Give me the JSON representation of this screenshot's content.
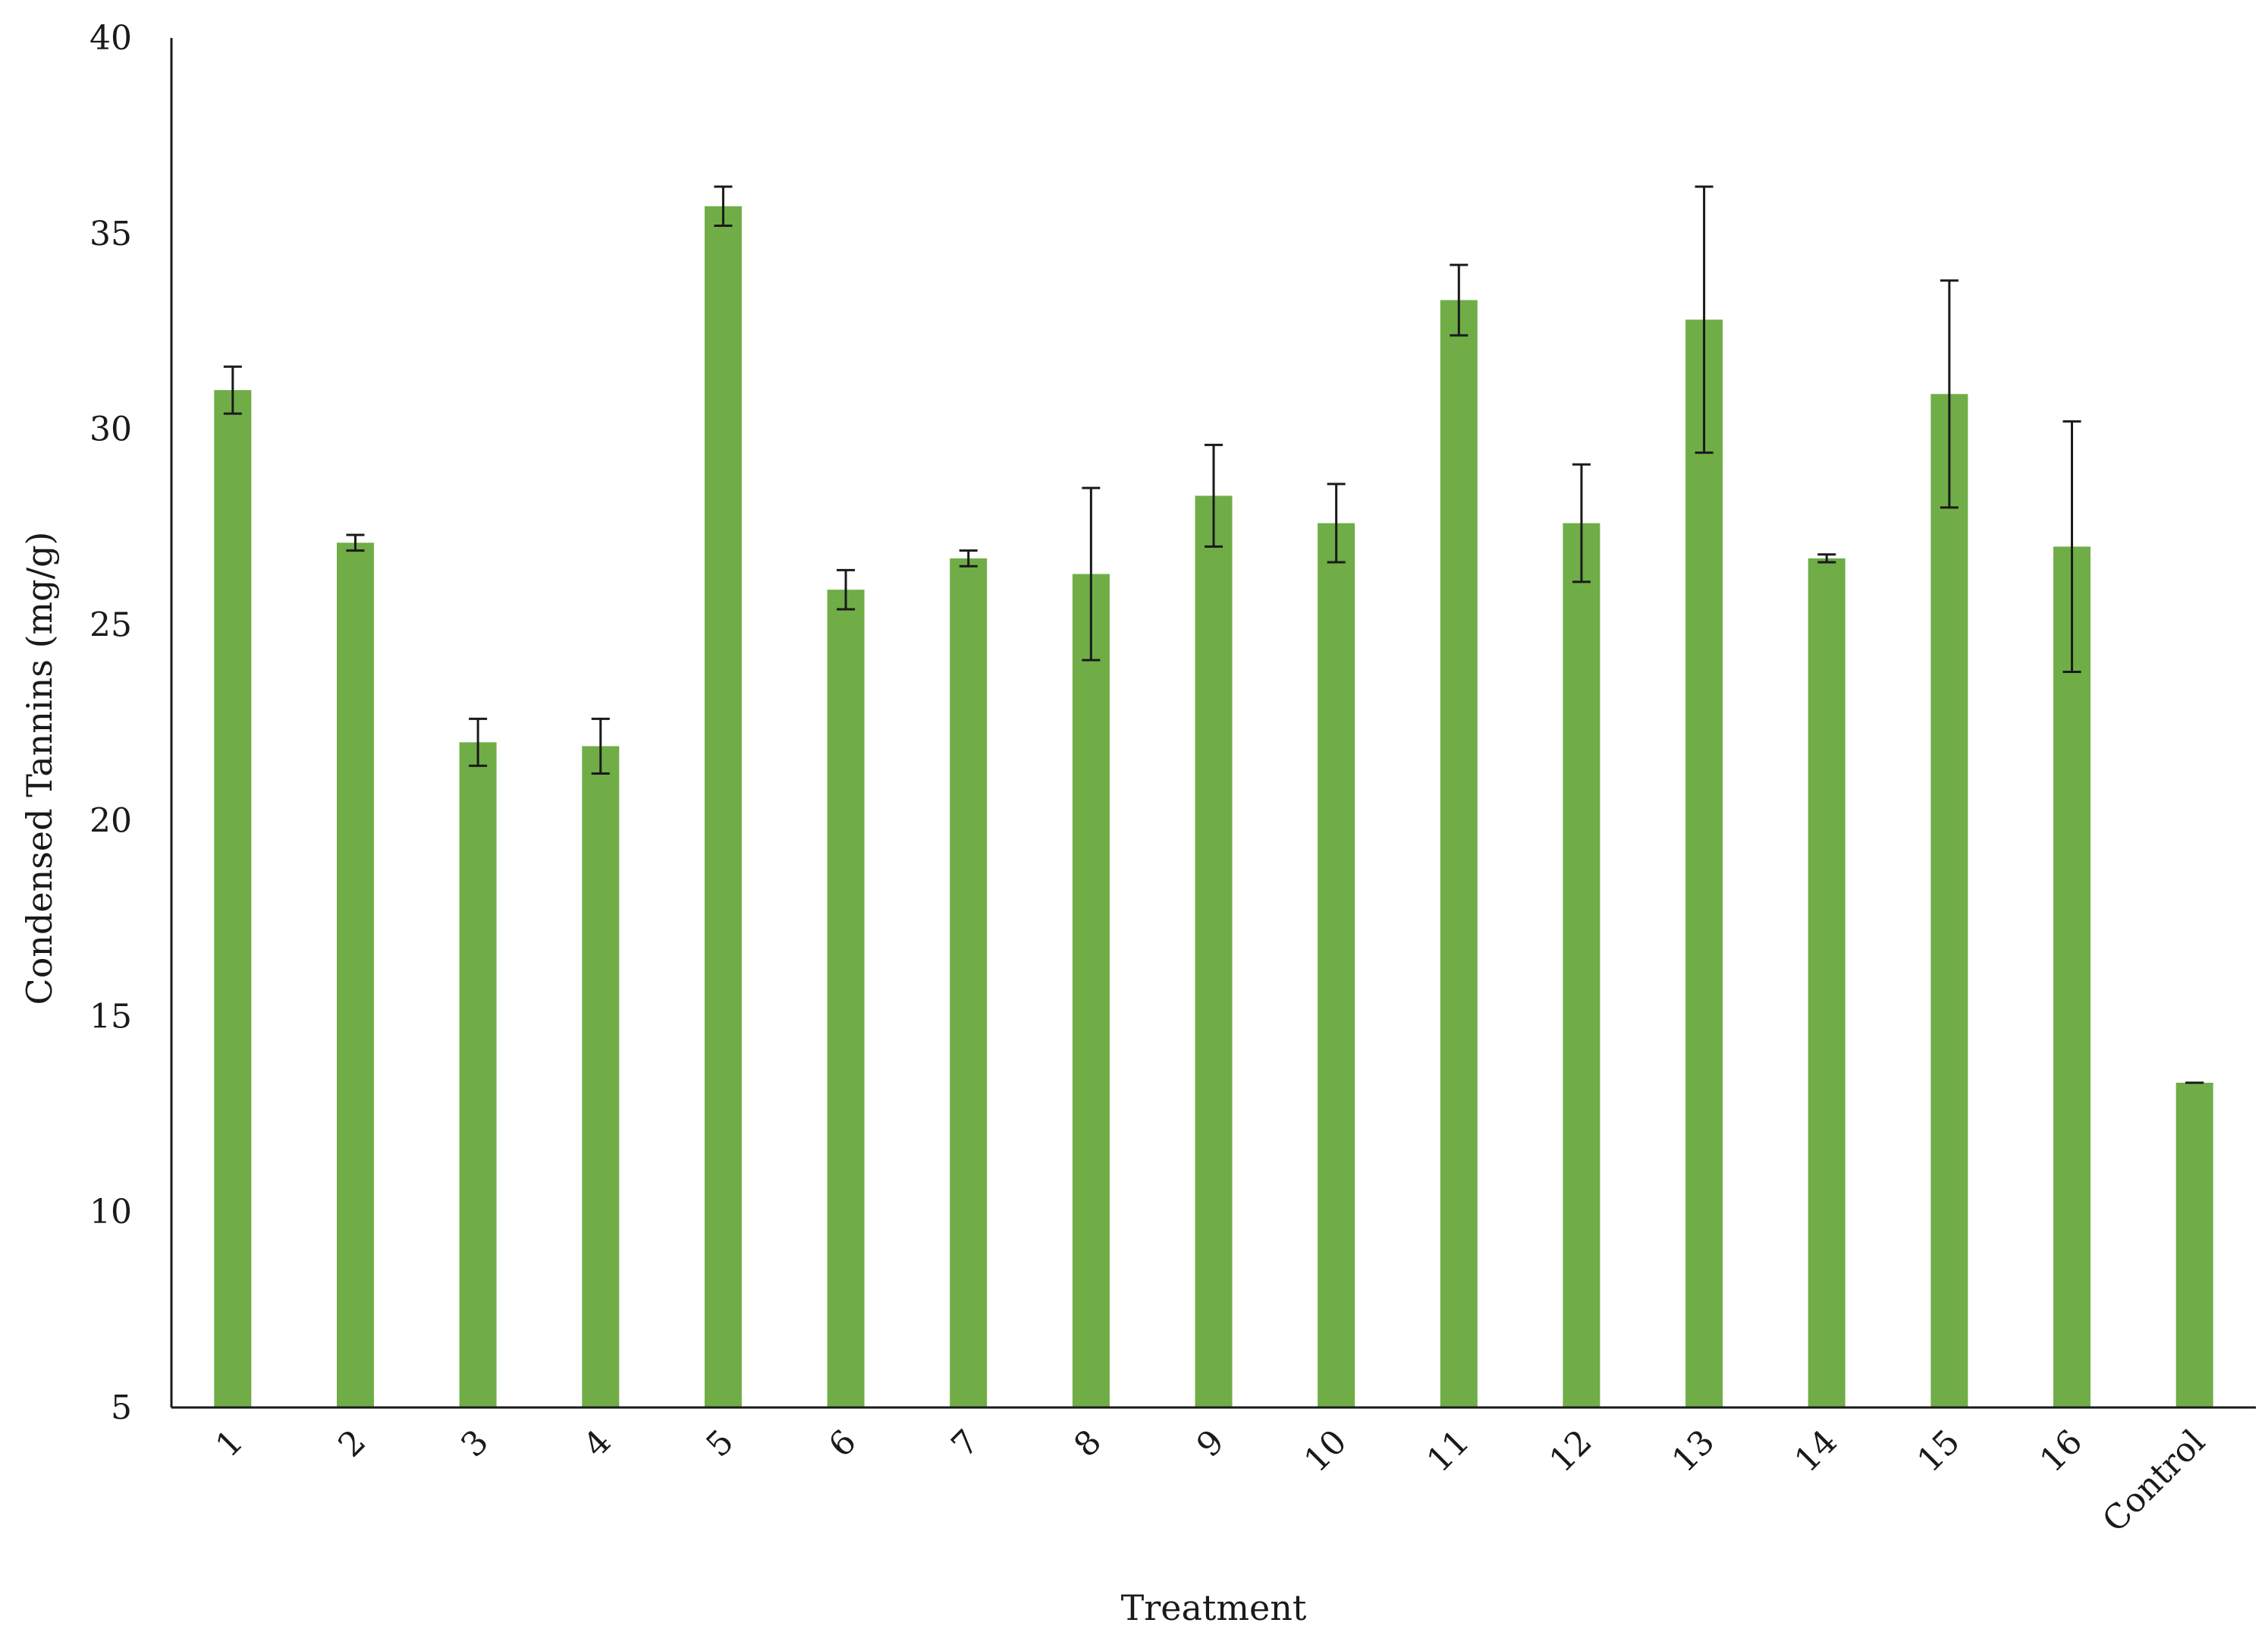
{
  "chart_data": {
    "type": "bar",
    "title": "",
    "xlabel": "Treatment",
    "ylabel": "Condensed Tannins (mg/g)",
    "categories": [
      "1",
      "2",
      "3",
      "4",
      "5",
      "6",
      "7",
      "8",
      "9",
      "10",
      "11",
      "12",
      "13",
      "14",
      "15",
      "16",
      "Control"
    ],
    "values": [
      31.0,
      27.1,
      22.0,
      21.9,
      35.7,
      25.9,
      26.7,
      26.3,
      28.3,
      27.6,
      33.3,
      27.6,
      32.8,
      26.7,
      30.9,
      27.0,
      13.3
    ],
    "errors": [
      0.6,
      0.2,
      0.6,
      0.7,
      0.5,
      0.5,
      0.2,
      2.2,
      1.3,
      1.0,
      0.9,
      1.5,
      3.4,
      0.1,
      2.9,
      3.2,
      0.0
    ],
    "ylim": [
      5,
      40
    ],
    "yticks": [
      5,
      10,
      15,
      20,
      25,
      30,
      35,
      40
    ],
    "grid": false,
    "legend": "none",
    "bar_color": "#70ad47",
    "error_bar_color": "#1a1a1a",
    "axis_color": "#1a1a1a"
  }
}
